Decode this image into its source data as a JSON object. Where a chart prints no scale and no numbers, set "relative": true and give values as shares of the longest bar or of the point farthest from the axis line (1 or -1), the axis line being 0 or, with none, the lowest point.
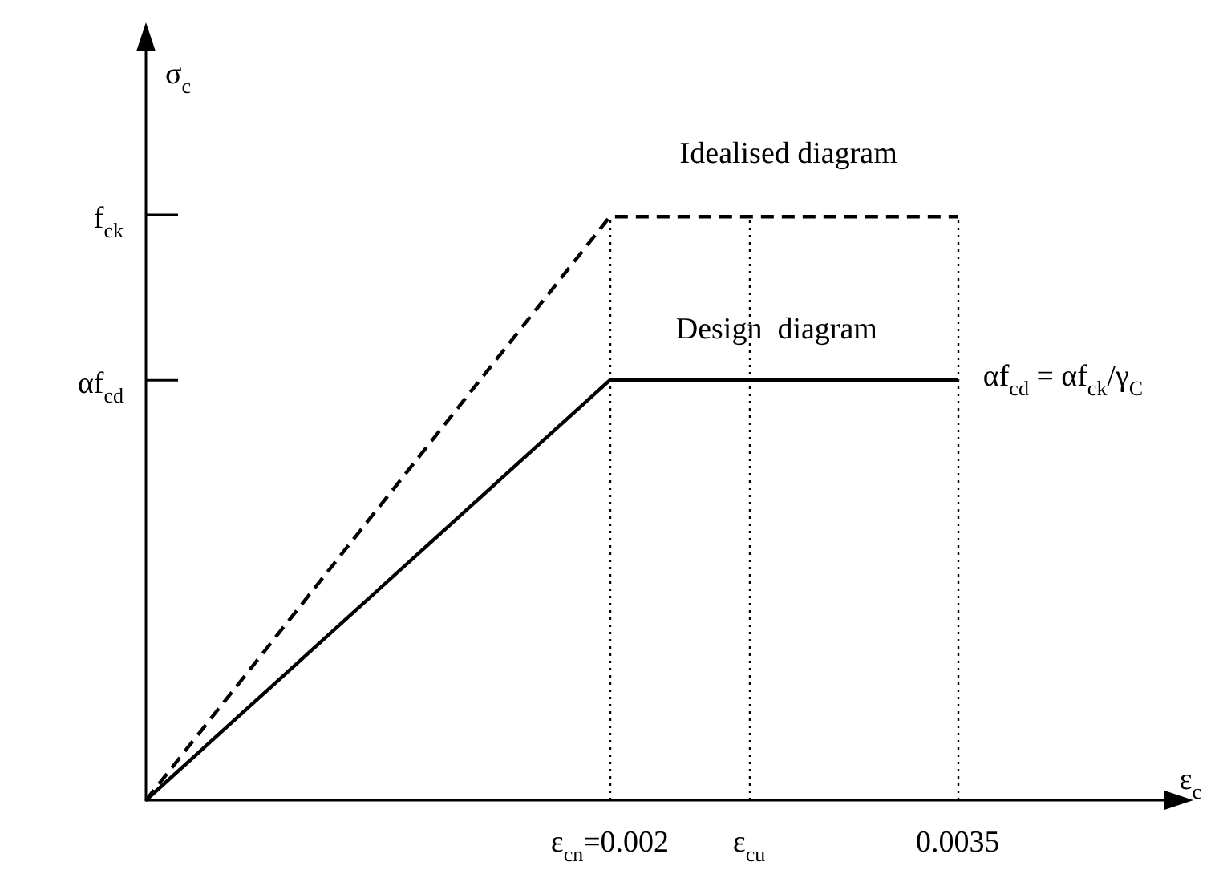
{
  "chart_data": {
    "type": "line",
    "relative": true,
    "xlabel": "ε$_{c}$",
    "ylabel": "σ$_{c}$",
    "xlim": [
      0,
      0.0044
    ],
    "xticks": [
      {
        "value": 0,
        "label": null
      },
      {
        "value": 0.002,
        "label": "ε$_{cn}$=0.002"
      },
      {
        "value": 0.0026,
        "label": "ε$_{cu}$"
      },
      {
        "value": 0.0035,
        "label": "0.0035"
      }
    ],
    "series": [
      {
        "color": "#000000",
        "line_style": "dashed",
        "x": [
          0,
          0.002,
          0.0035
        ],
        "values": [
          0,
          1,
          1
        ]
      },
      {
        "color": "#000000",
        "line_style": "solid",
        "x": [
          0,
          0.002,
          0.0035
        ],
        "values": [
          0,
          0.72,
          0.72
        ]
      }
    ],
    "ref_lines": [
      {
        "axis": "x",
        "value": 0.002,
        "label": null,
        "color": "#000000",
        "line_style": "dotted"
      },
      {
        "axis": "x",
        "value": 0.0026,
        "label": null,
        "color": "#000000",
        "line_style": "dotted"
      },
      {
        "axis": "x",
        "value": 0.0035,
        "label": null,
        "color": "#000000",
        "line_style": "dotted"
      }
    ],
    "annotations": [
      "f$_{ck}$",
      "αf$_{cd}$",
      "Idealised diagram",
      "Design  diagram",
      "αf$_{cd}$ = αf$_{ck}$/γ$_{C}$"
    ],
    "grid": false
  }
}
